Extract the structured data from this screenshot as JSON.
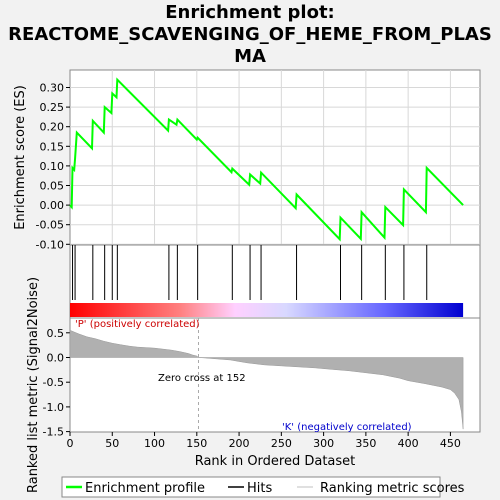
{
  "title_lines": [
    "Enrichment plot:",
    "REACTOME_SCAVENGING_OF_HEME_FROM_PLAS",
    "MA"
  ],
  "chart_data": [
    {
      "type": "line",
      "ylabel": "Enrichment score (ES)",
      "ylim": [
        -0.1,
        0.35
      ],
      "yticks": [
        "0.30",
        "0.25",
        "0.20",
        "0.15",
        "0.10",
        "0.05",
        "0.00",
        "-0.05",
        "-0.10"
      ],
      "ytick_values": [
        0.3,
        0.25,
        0.2,
        0.15,
        0.1,
        0.05,
        0.0,
        -0.05,
        -0.1
      ],
      "xlim": [
        0,
        485
      ],
      "grid": true,
      "series": [
        {
          "name": "Enrichment profile",
          "color": "#00ff00",
          "x": [
            0,
            2,
            3,
            5,
            6,
            8,
            26,
            27,
            40,
            41,
            49,
            50,
            55,
            56,
            116,
            117,
            126,
            127,
            150,
            151,
            191,
            192,
            212,
            213,
            225,
            226,
            267,
            268,
            319,
            320,
            344,
            345,
            372,
            373,
            394,
            395,
            421,
            422,
            465
          ],
          "y": [
            0.0,
            -0.005,
            0.095,
            0.09,
            0.12,
            0.185,
            0.145,
            0.215,
            0.185,
            0.25,
            0.235,
            0.285,
            0.275,
            0.32,
            0.19,
            0.218,
            0.205,
            0.218,
            0.167,
            0.172,
            0.084,
            0.093,
            0.052,
            0.078,
            0.055,
            0.083,
            -0.008,
            0.027,
            -0.087,
            -0.032,
            -0.086,
            -0.018,
            -0.083,
            -0.005,
            -0.051,
            0.04,
            -0.018,
            0.095,
            0.0
          ]
        }
      ]
    },
    {
      "type": "hits",
      "series": [
        {
          "name": "Hits",
          "x": [
            3,
            6,
            27,
            41,
            50,
            56,
            117,
            127,
            151,
            192,
            213,
            226,
            268,
            320,
            345,
            373,
            395,
            422
          ]
        }
      ],
      "color_band": {
        "positive_color": "#ff0000",
        "negative_color": "#0000ff",
        "zero_cross": 152
      }
    },
    {
      "type": "area",
      "ylabel": "Ranked list metric (Signal2Noise)",
      "xlabel": "Rank in Ordered Dataset",
      "ylim": [
        -1.5,
        0.75
      ],
      "yticks": [
        "0.5",
        "0.0",
        "-0.5",
        "-1.0",
        "-1.5"
      ],
      "ytick_values": [
        0.5,
        0.0,
        -0.5,
        -1.0,
        -1.5
      ],
      "xticks": [
        "0",
        "50",
        "100",
        "150",
        "200",
        "250",
        "300",
        "350",
        "400",
        "450"
      ],
      "xtick_values": [
        0,
        50,
        100,
        150,
        200,
        250,
        300,
        350,
        400,
        450
      ],
      "xlim": [
        0,
        485
      ],
      "series": [
        {
          "name": "Ranking metric scores",
          "color": "#b0b0b0",
          "x": [
            0,
            3,
            10,
            20,
            30,
            40,
            50,
            60,
            70,
            80,
            90,
            100,
            110,
            120,
            130,
            140,
            145,
            150,
            152,
            160,
            175,
            190,
            200,
            210,
            220,
            230,
            250,
            270,
            290,
            310,
            330,
            350,
            370,
            390,
            400,
            420,
            440,
            450,
            455,
            460,
            463,
            465
          ],
          "y": [
            0.55,
            0.53,
            0.48,
            0.42,
            0.38,
            0.33,
            0.29,
            0.26,
            0.23,
            0.21,
            0.2,
            0.19,
            0.17,
            0.15,
            0.12,
            0.08,
            0.05,
            0.03,
            0.0,
            -0.01,
            -0.03,
            -0.05,
            -0.08,
            -0.11,
            -0.13,
            -0.15,
            -0.17,
            -0.19,
            -0.21,
            -0.24,
            -0.27,
            -0.31,
            -0.35,
            -0.42,
            -0.47,
            -0.53,
            -0.6,
            -0.65,
            -0.72,
            -0.85,
            -1.1,
            -1.45
          ]
        }
      ],
      "annotations": {
        "positive": "'P' (positively correlated)",
        "zero_cross": "Zero cross at 152",
        "negative": "'K' (negatively correlated)"
      }
    }
  ],
  "legend": {
    "items": [
      {
        "label": "Enrichment profile",
        "color": "#00ff00"
      },
      {
        "label": "Hits",
        "color": "#000000"
      },
      {
        "label": "Ranking metric scores",
        "color": "#c0c0c0"
      }
    ]
  }
}
